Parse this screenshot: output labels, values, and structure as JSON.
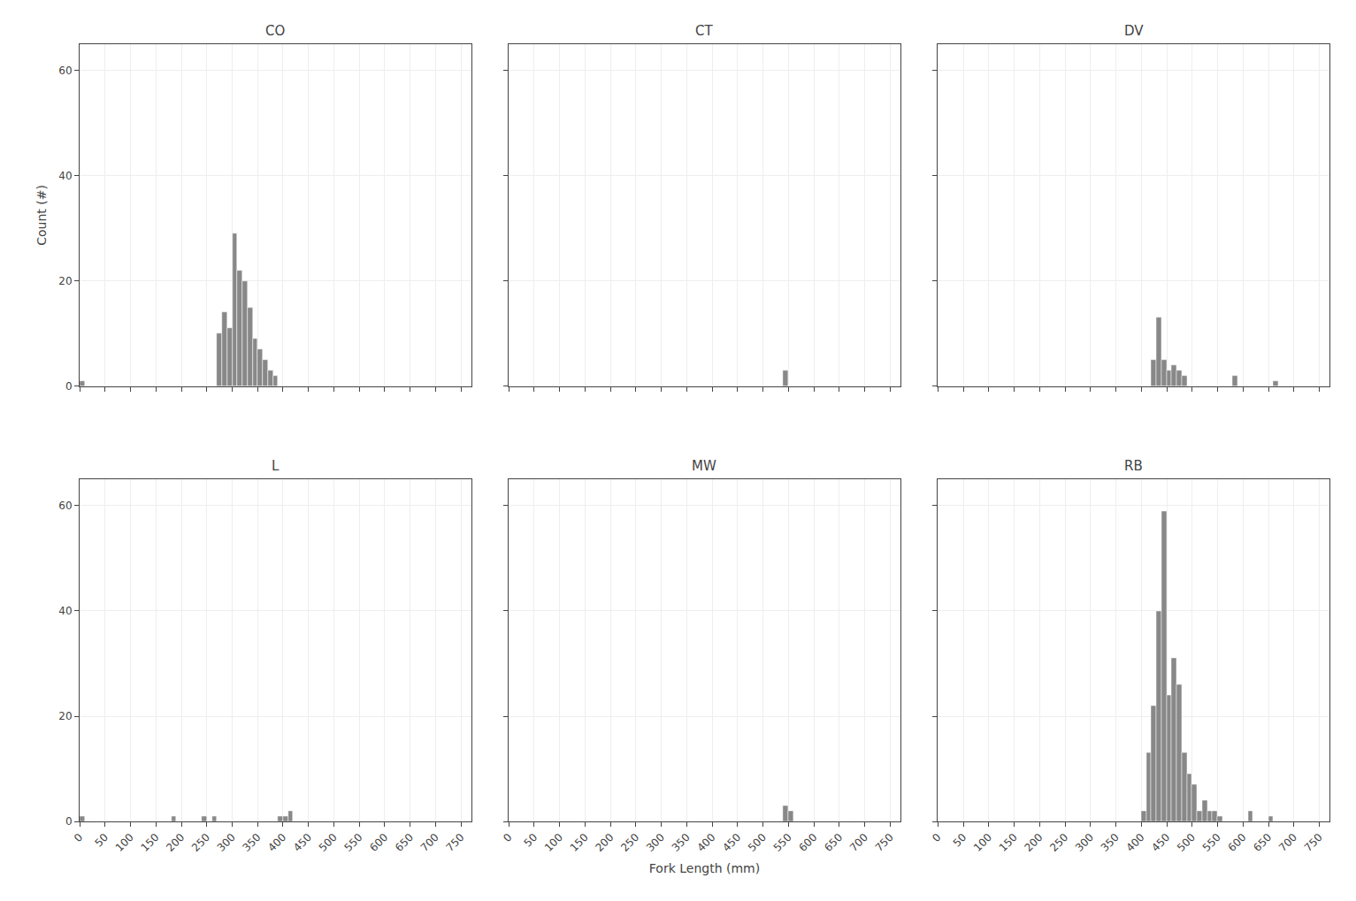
{
  "chart_data": [
    {
      "type": "histogram",
      "title": "CO",
      "color": "#888888",
      "grid": true,
      "tick_labels": "y",
      "bins": [
        0,
        10,
        20,
        30,
        40,
        50,
        60,
        70,
        80,
        90,
        100,
        110,
        120,
        130,
        140,
        150,
        160,
        170,
        180,
        190,
        200,
        210,
        220,
        230,
        240,
        250,
        260,
        270,
        280,
        290,
        300,
        310,
        320,
        330,
        340,
        350,
        360,
        370,
        380,
        390,
        400,
        410,
        420,
        430,
        440,
        450,
        460,
        470,
        480,
        490,
        500,
        510,
        520,
        530,
        540,
        550,
        560,
        570,
        580,
        590,
        600,
        610,
        620,
        630,
        640,
        650,
        660,
        670,
        680,
        690,
        700,
        710,
        720,
        730,
        740,
        750,
        760,
        770
      ],
      "values": [
        1,
        0,
        0,
        0,
        0,
        0,
        0,
        0,
        0,
        0,
        0,
        0,
        0,
        0,
        0,
        0,
        0,
        0,
        0,
        0,
        0,
        0,
        0,
        0,
        0,
        0,
        0,
        10,
        14,
        11,
        29,
        22,
        20,
        15,
        9,
        7,
        5,
        3,
        2,
        0,
        0,
        0,
        0,
        0,
        0,
        0,
        0,
        0,
        0,
        0,
        0,
        0,
        0,
        0,
        0,
        0,
        0,
        0,
        0,
        0,
        0,
        0,
        0,
        0,
        0,
        0,
        0,
        0,
        0,
        0,
        0,
        0,
        0,
        0,
        0,
        0,
        0
      ],
      "ylabel": "Count (#)",
      "xlim": [
        0,
        770
      ],
      "xticks": [
        0,
        50,
        100,
        150,
        200,
        250,
        300,
        350,
        400,
        450,
        500,
        550,
        600,
        650,
        700,
        750
      ],
      "ylim": [
        0,
        65
      ],
      "yticks": [
        0,
        20,
        40,
        60
      ]
    },
    {
      "type": "histogram",
      "title": "CT",
      "color": "#888888",
      "grid": true,
      "tick_labels": false,
      "bins": [
        0,
        10,
        20,
        30,
        40,
        50,
        60,
        70,
        80,
        90,
        100,
        110,
        120,
        130,
        140,
        150,
        160,
        170,
        180,
        190,
        200,
        210,
        220,
        230,
        240,
        250,
        260,
        270,
        280,
        290,
        300,
        310,
        320,
        330,
        340,
        350,
        360,
        370,
        380,
        390,
        400,
        410,
        420,
        430,
        440,
        450,
        460,
        470,
        480,
        490,
        500,
        510,
        520,
        530,
        540,
        550,
        560,
        570,
        580,
        590,
        600,
        610,
        620,
        630,
        640,
        650,
        660,
        670,
        680,
        690,
        700,
        710,
        720,
        730,
        740,
        750,
        760,
        770
      ],
      "values": [
        0,
        0,
        0,
        0,
        0,
        0,
        0,
        0,
        0,
        0,
        0,
        0,
        0,
        0,
        0,
        0,
        0,
        0,
        0,
        0,
        0,
        0,
        0,
        0,
        0,
        0,
        0,
        0,
        0,
        0,
        0,
        0,
        0,
        0,
        0,
        0,
        0,
        0,
        0,
        0,
        0,
        0,
        0,
        0,
        0,
        0,
        0,
        0,
        0,
        0,
        0,
        0,
        0,
        0,
        3,
        0,
        0,
        0,
        0,
        0,
        0,
        0,
        0,
        0,
        0,
        0,
        0,
        0,
        0,
        0,
        0,
        0,
        0,
        0,
        0,
        0,
        0
      ],
      "xlim": [
        0,
        770
      ],
      "xticks": [
        0,
        50,
        100,
        150,
        200,
        250,
        300,
        350,
        400,
        450,
        500,
        550,
        600,
        650,
        700,
        750
      ],
      "ylim": [
        0,
        65
      ],
      "yticks": [
        0,
        20,
        40,
        60
      ]
    },
    {
      "type": "histogram",
      "title": "DV",
      "color": "#888888",
      "grid": true,
      "tick_labels": false,
      "bins": [
        0,
        10,
        20,
        30,
        40,
        50,
        60,
        70,
        80,
        90,
        100,
        110,
        120,
        130,
        140,
        150,
        160,
        170,
        180,
        190,
        200,
        210,
        220,
        230,
        240,
        250,
        260,
        270,
        280,
        290,
        300,
        310,
        320,
        330,
        340,
        350,
        360,
        370,
        380,
        390,
        400,
        410,
        420,
        430,
        440,
        450,
        460,
        470,
        480,
        490,
        500,
        510,
        520,
        530,
        540,
        550,
        560,
        570,
        580,
        590,
        600,
        610,
        620,
        630,
        640,
        650,
        660,
        670,
        680,
        690,
        700,
        710,
        720,
        730,
        740,
        750,
        760,
        770
      ],
      "values": [
        0,
        0,
        0,
        0,
        0,
        0,
        0,
        0,
        0,
        0,
        0,
        0,
        0,
        0,
        0,
        0,
        0,
        0,
        0,
        0,
        0,
        0,
        0,
        0,
        0,
        0,
        0,
        0,
        0,
        0,
        0,
        0,
        0,
        0,
        0,
        0,
        0,
        0,
        0,
        0,
        0,
        0,
        5,
        13,
        5,
        3,
        4,
        3,
        2,
        0,
        0,
        0,
        0,
        0,
        0,
        0,
        0,
        0,
        2,
        0,
        0,
        0,
        0,
        0,
        0,
        0,
        1,
        0,
        0,
        0,
        0,
        0,
        0,
        0,
        0,
        0,
        0
      ],
      "xlim": [
        0,
        770
      ],
      "xticks": [
        0,
        50,
        100,
        150,
        200,
        250,
        300,
        350,
        400,
        450,
        500,
        550,
        600,
        650,
        700,
        750
      ],
      "ylim": [
        0,
        65
      ],
      "yticks": [
        0,
        20,
        40,
        60
      ]
    },
    {
      "type": "histogram",
      "title": "L",
      "color": "#888888",
      "grid": true,
      "tick_labels": true,
      "bins": [
        0,
        10,
        20,
        30,
        40,
        50,
        60,
        70,
        80,
        90,
        100,
        110,
        120,
        130,
        140,
        150,
        160,
        170,
        180,
        190,
        200,
        210,
        220,
        230,
        240,
        250,
        260,
        270,
        280,
        290,
        300,
        310,
        320,
        330,
        340,
        350,
        360,
        370,
        380,
        390,
        400,
        410,
        420,
        430,
        440,
        450,
        460,
        470,
        480,
        490,
        500,
        510,
        520,
        530,
        540,
        550,
        560,
        570,
        580,
        590,
        600,
        610,
        620,
        630,
        640,
        650,
        660,
        670,
        680,
        690,
        700,
        710,
        720,
        730,
        740,
        750,
        760,
        770
      ],
      "values": [
        1,
        0,
        0,
        0,
        0,
        0,
        0,
        0,
        0,
        0,
        0,
        0,
        0,
        0,
        0,
        0,
        0,
        0,
        1,
        0,
        0,
        0,
        0,
        0,
        1,
        0,
        1,
        0,
        0,
        0,
        0,
        0,
        0,
        0,
        0,
        0,
        0,
        0,
        0,
        1,
        1,
        2,
        0,
        0,
        0,
        0,
        0,
        0,
        0,
        0,
        0,
        0,
        0,
        0,
        0,
        0,
        0,
        0,
        0,
        0,
        0,
        0,
        0,
        0,
        0,
        0,
        0,
        0,
        0,
        0,
        0,
        0,
        0,
        0,
        0,
        0,
        0
      ],
      "xlim": [
        0,
        770
      ],
      "xticks": [
        0,
        50,
        100,
        150,
        200,
        250,
        300,
        350,
        400,
        450,
        500,
        550,
        600,
        650,
        700,
        750
      ],
      "ylim": [
        0,
        65
      ],
      "yticks": [
        0,
        20,
        40,
        60
      ]
    },
    {
      "type": "histogram",
      "title": "MW",
      "color": "#888888",
      "grid": true,
      "tick_labels": "x",
      "bins": [
        0,
        10,
        20,
        30,
        40,
        50,
        60,
        70,
        80,
        90,
        100,
        110,
        120,
        130,
        140,
        150,
        160,
        170,
        180,
        190,
        200,
        210,
        220,
        230,
        240,
        250,
        260,
        270,
        280,
        290,
        300,
        310,
        320,
        330,
        340,
        350,
        360,
        370,
        380,
        390,
        400,
        410,
        420,
        430,
        440,
        450,
        460,
        470,
        480,
        490,
        500,
        510,
        520,
        530,
        540,
        550,
        560,
        570,
        580,
        590,
        600,
        610,
        620,
        630,
        640,
        650,
        660,
        670,
        680,
        690,
        700,
        710,
        720,
        730,
        740,
        750,
        760,
        770
      ],
      "values": [
        0,
        0,
        0,
        0,
        0,
        0,
        0,
        0,
        0,
        0,
        0,
        0,
        0,
        0,
        0,
        0,
        0,
        0,
        0,
        0,
        0,
        0,
        0,
        0,
        0,
        0,
        0,
        0,
        0,
        0,
        0,
        0,
        0,
        0,
        0,
        0,
        0,
        0,
        0,
        0,
        0,
        0,
        0,
        0,
        0,
        0,
        0,
        0,
        0,
        0,
        0,
        0,
        0,
        0,
        3,
        2,
        0,
        0,
        0,
        0,
        0,
        0,
        0,
        0,
        0,
        0,
        0,
        0,
        0,
        0,
        0,
        0,
        0,
        0,
        0,
        0,
        0
      ],
      "xlabel": "Fork Length (mm)",
      "xlim": [
        0,
        770
      ],
      "xticks": [
        0,
        50,
        100,
        150,
        200,
        250,
        300,
        350,
        400,
        450,
        500,
        550,
        600,
        650,
        700,
        750
      ],
      "ylim": [
        0,
        65
      ],
      "yticks": [
        0,
        20,
        40,
        60
      ]
    },
    {
      "type": "histogram",
      "title": "RB",
      "color": "#888888",
      "grid": true,
      "tick_labels": "x",
      "bins": [
        0,
        10,
        20,
        30,
        40,
        50,
        60,
        70,
        80,
        90,
        100,
        110,
        120,
        130,
        140,
        150,
        160,
        170,
        180,
        190,
        200,
        210,
        220,
        230,
        240,
        250,
        260,
        270,
        280,
        290,
        300,
        310,
        320,
        330,
        340,
        350,
        360,
        370,
        380,
        390,
        400,
        410,
        420,
        430,
        440,
        450,
        460,
        470,
        480,
        490,
        500,
        510,
        520,
        530,
        540,
        550,
        560,
        570,
        580,
        590,
        600,
        610,
        620,
        630,
        640,
        650,
        660,
        670,
        680,
        690,
        700,
        710,
        720,
        730,
        740,
        750,
        760,
        770
      ],
      "values": [
        0,
        0,
        0,
        0,
        0,
        0,
        0,
        0,
        0,
        0,
        0,
        0,
        0,
        0,
        0,
        0,
        0,
        0,
        0,
        0,
        0,
        0,
        0,
        0,
        0,
        0,
        0,
        0,
        0,
        0,
        0,
        0,
        0,
        0,
        0,
        0,
        0,
        0,
        0,
        0,
        2,
        13,
        22,
        40,
        59,
        24,
        31,
        26,
        13,
        9,
        7,
        2,
        4,
        2,
        2,
        1,
        0,
        0,
        0,
        0,
        0,
        2,
        0,
        0,
        0,
        1,
        0,
        0,
        0,
        0,
        0,
        0,
        0,
        0,
        0,
        0,
        0
      ],
      "xlim": [
        0,
        770
      ],
      "xticks": [
        0,
        50,
        100,
        150,
        200,
        250,
        300,
        350,
        400,
        450,
        500,
        550,
        600,
        650,
        700,
        750
      ],
      "ylim": [
        0,
        65
      ],
      "yticks": [
        0,
        20,
        40,
        60
      ]
    }
  ]
}
